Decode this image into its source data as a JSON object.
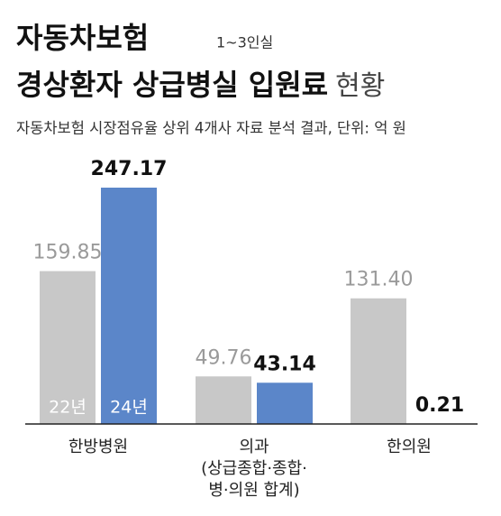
{
  "chart_data": {
    "type": "bar",
    "title": [
      "자동차보험",
      "경상환자 상급병실 입원료"
    ],
    "title_suffix": "현황",
    "title_note": "1~3인실",
    "subtitle": "자동차보험 시장점유율 상위 4개사 자료 분석 결과, 단위: 억 원",
    "categories": [
      "한방병원",
      "의과\n(상급종합·종합·\n병·의원 합계)",
      "한의원"
    ],
    "series": [
      {
        "name": "22년",
        "color": "#c8c8c8",
        "values": [
          159.85,
          49.76,
          131.4
        ],
        "value_labels": [
          "159.85",
          "49.76",
          "131.40"
        ]
      },
      {
        "name": "24년",
        "color": "#5b86c9",
        "values": [
          247.17,
          43.14,
          0.21
        ],
        "value_labels": [
          "247.17",
          "43.14",
          "0.21"
        ]
      }
    ]
  }
}
